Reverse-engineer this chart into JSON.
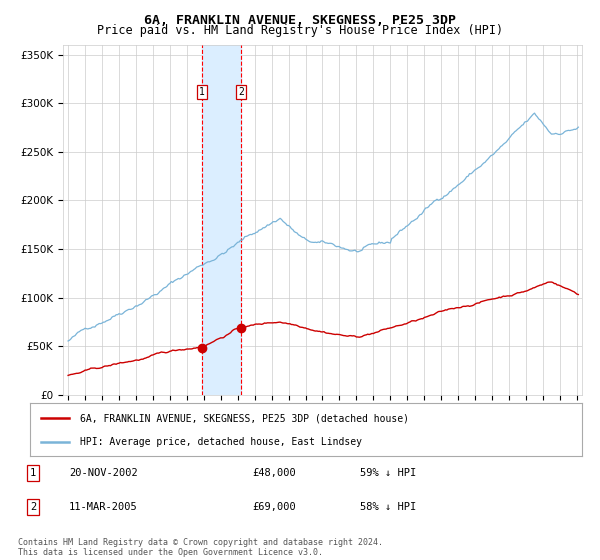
{
  "title": "6A, FRANKLIN AVENUE, SKEGNESS, PE25 3DP",
  "subtitle": "Price paid vs. HM Land Registry's House Price Index (HPI)",
  "title_fontsize": 9.5,
  "subtitle_fontsize": 8.5,
  "x_start_year": 1995,
  "x_end_year": 2025,
  "ylim": [
    0,
    360000
  ],
  "yticks": [
    0,
    50000,
    100000,
    150000,
    200000,
    250000,
    300000,
    350000
  ],
  "ytick_labels": [
    "£0",
    "£50K",
    "£100K",
    "£150K",
    "£200K",
    "£250K",
    "£300K",
    "£350K"
  ],
  "hpi_color": "#7ab4d8",
  "price_color": "#cc0000",
  "point1_date_num": 2002.89,
  "point1_price": 48000,
  "point1_label": "1",
  "point1_date_str": "20-NOV-2002",
  "point1_hpi_pct": "59% ↓ HPI",
  "point2_date_num": 2005.19,
  "point2_price": 69000,
  "point2_label": "2",
  "point2_date_str": "11-MAR-2005",
  "point2_hpi_pct": "58% ↓ HPI",
  "legend_label_red": "6A, FRANKLIN AVENUE, SKEGNESS, PE25 3DP (detached house)",
  "legend_label_blue": "HPI: Average price, detached house, East Lindsey",
  "footnote": "Contains HM Land Registry data © Crown copyright and database right 2024.\nThis data is licensed under the Open Government Licence v3.0.",
  "bg_color": "#ffffff",
  "grid_color": "#cccccc",
  "shade_color": "#dbeeff"
}
